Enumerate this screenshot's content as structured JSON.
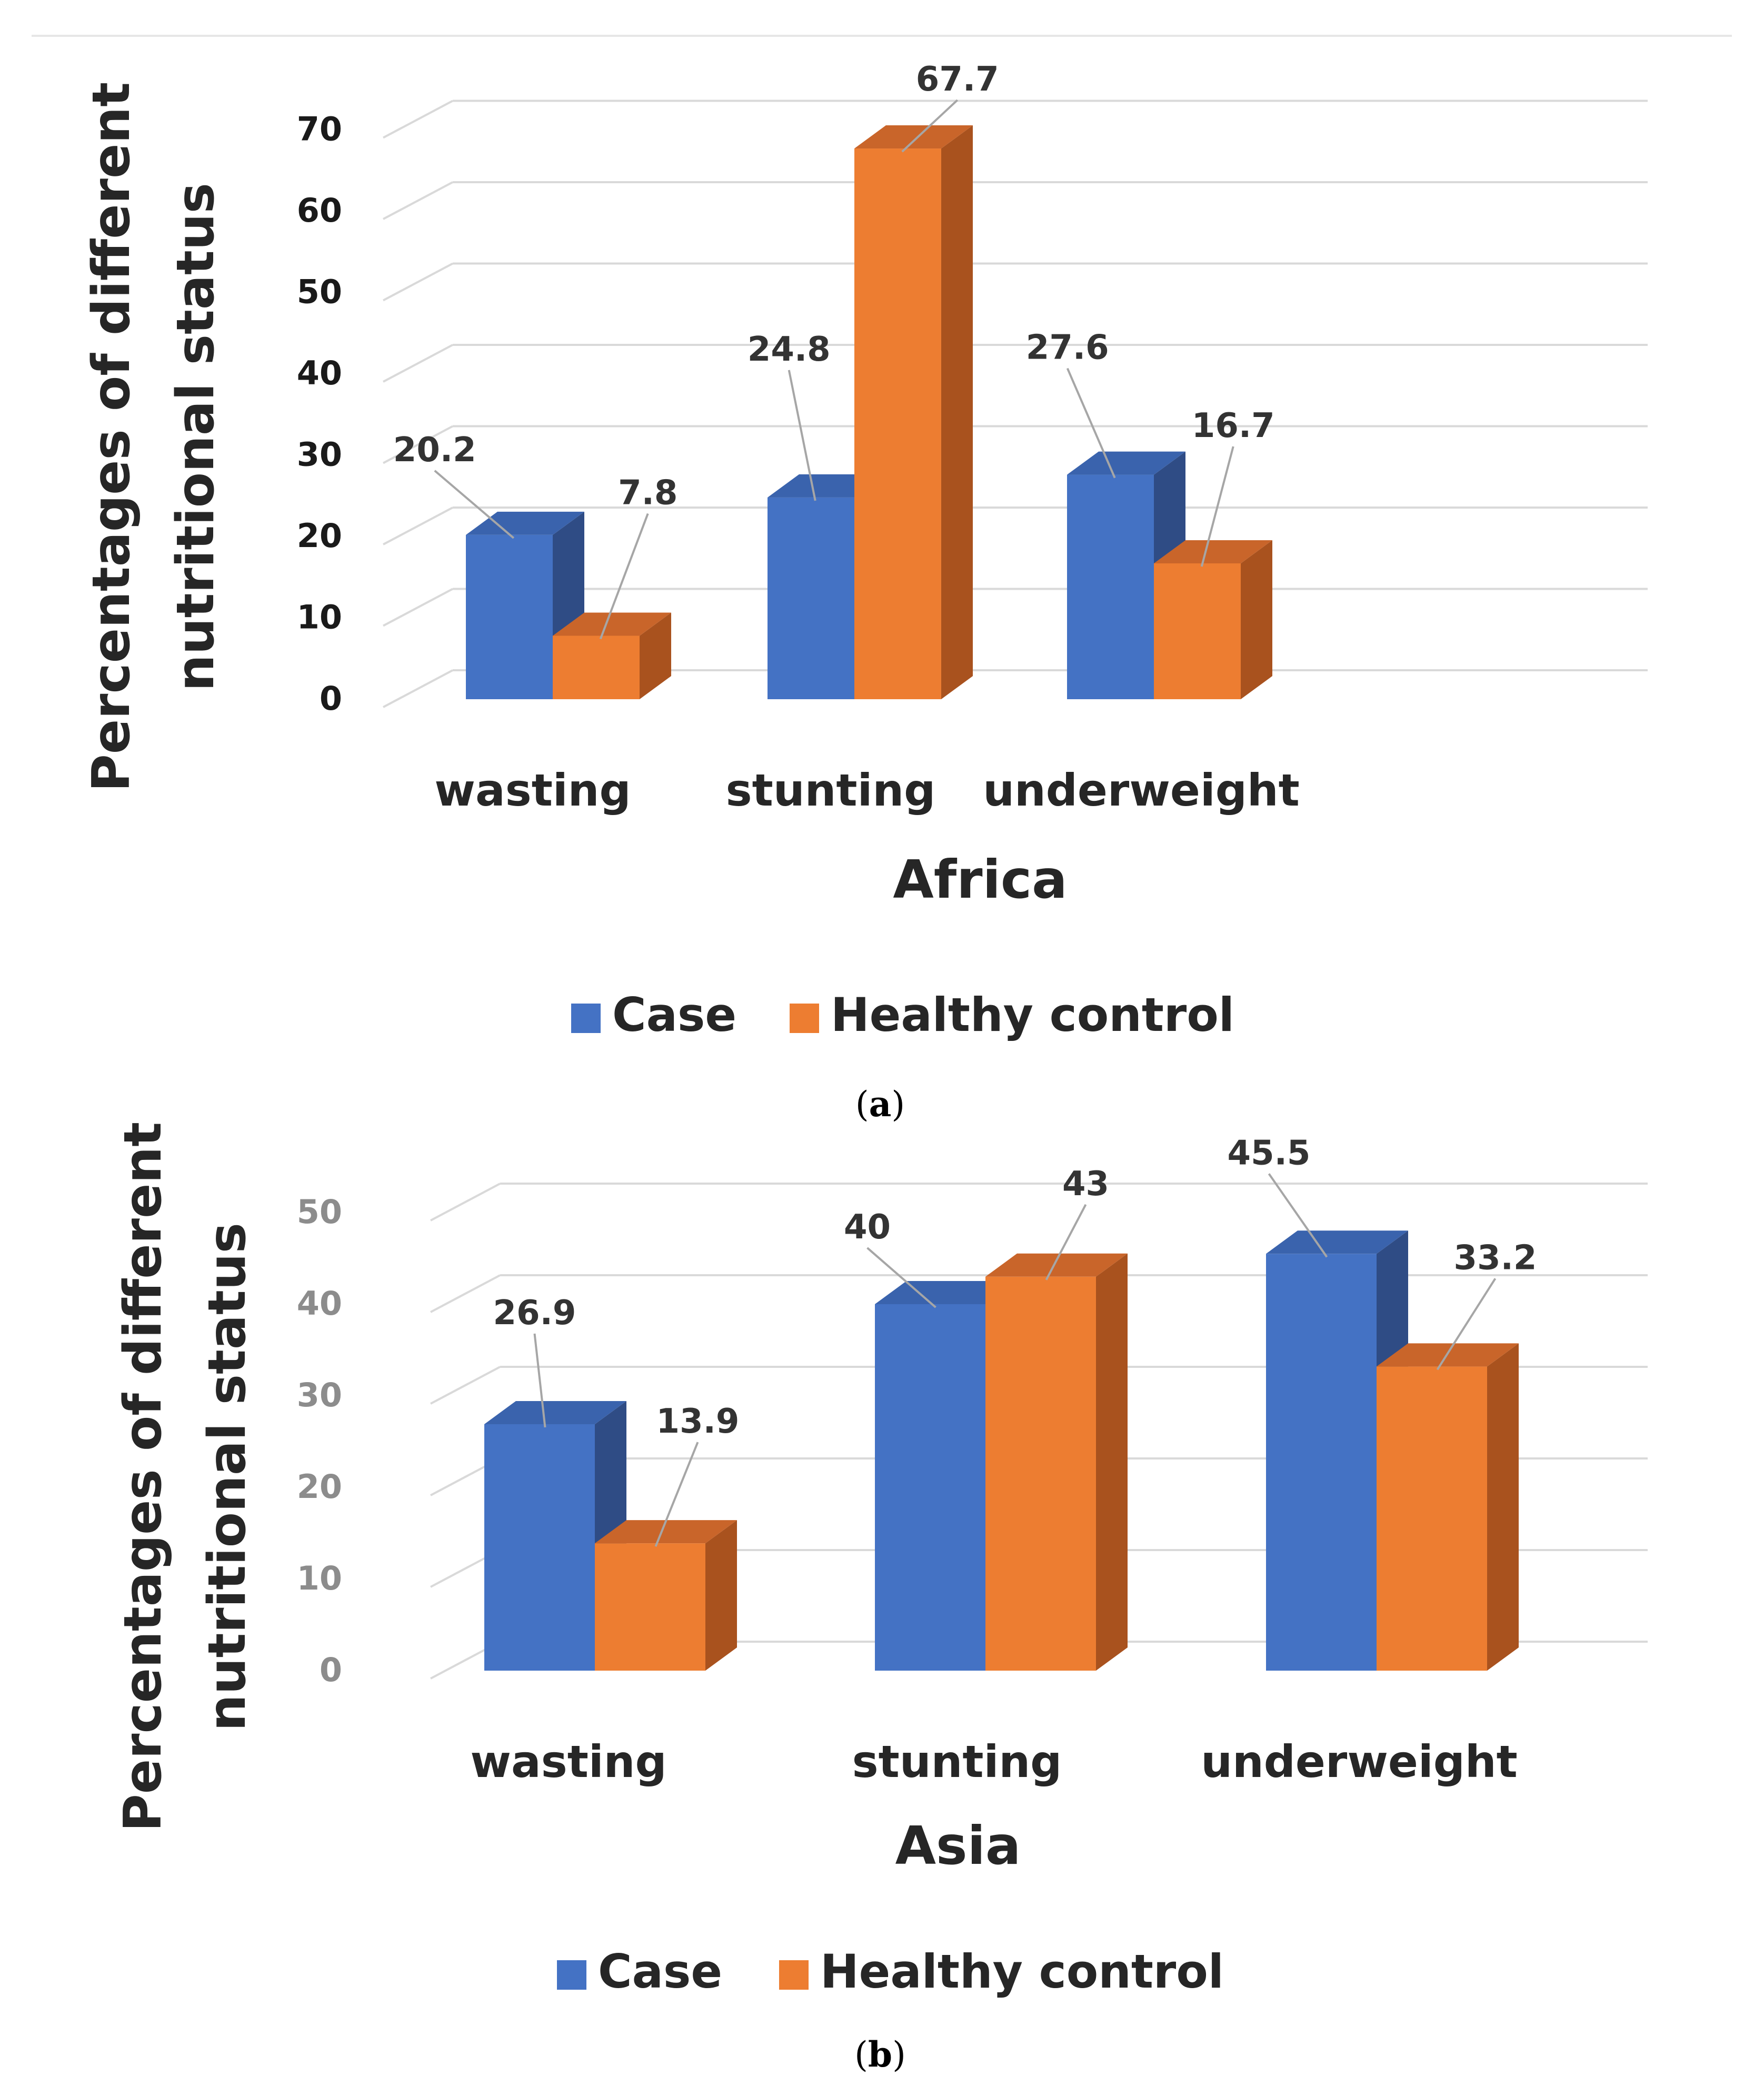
{
  "colors": {
    "case": "#4472c4",
    "case_side": "#2f4c85",
    "case_top": "#3a63ad",
    "control": "#ed7d31",
    "control_side": "#a9521e",
    "control_top": "#c9652a",
    "grid": "#d9d9d9",
    "leader": "#a6a6a6"
  },
  "chart_data": [
    {
      "id": "a",
      "type": "bar",
      "title": "",
      "caption_letter": "a",
      "xlabel": "Africa",
      "ylabel_lines": [
        "Percentages of different",
        "nutritional status"
      ],
      "categories": [
        "wasting",
        "stunting",
        "underweight"
      ],
      "series": [
        {
          "name": "Case",
          "values": [
            20.2,
            24.8,
            27.6
          ]
        },
        {
          "name": "Healthy control",
          "values": [
            7.8,
            67.7,
            16.7
          ]
        }
      ],
      "ylim": [
        0,
        70
      ],
      "yticks": [
        "0",
        "10",
        "20",
        "30",
        "40",
        "50",
        "60",
        "70"
      ],
      "data_labels": [
        [
          "20.2",
          "24.8",
          "27.6"
        ],
        [
          "7.8",
          "67.7",
          "16.7"
        ]
      ],
      "legend": [
        "Case",
        "Healthy control"
      ],
      "legend_position": "bottom",
      "grid": true
    },
    {
      "id": "b",
      "type": "bar",
      "title": "",
      "caption_letter": "b",
      "xlabel": "Asia",
      "ylabel_lines": [
        "Percentages of different",
        "nutritional status"
      ],
      "categories": [
        "wasting",
        "stunting",
        "underweight"
      ],
      "series": [
        {
          "name": "Case",
          "values": [
            26.9,
            40,
            45.5
          ]
        },
        {
          "name": "Healthy control",
          "values": [
            13.9,
            43,
            33.2
          ]
        }
      ],
      "ylim": [
        0,
        50
      ],
      "yticks": [
        "0",
        "10",
        "20",
        "30",
        "40",
        "50"
      ],
      "data_labels": [
        [
          "26.9",
          "40",
          "45.5"
        ],
        [
          "13.9",
          "43",
          "33.2"
        ]
      ],
      "legend": [
        "Case",
        "Healthy control"
      ],
      "legend_position": "bottom",
      "grid": true
    }
  ]
}
